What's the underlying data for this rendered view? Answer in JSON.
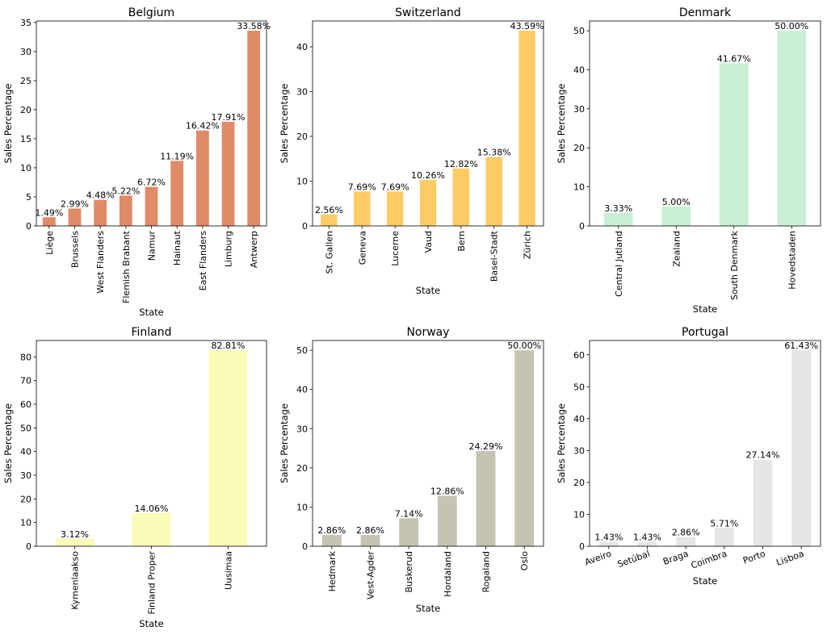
{
  "chart_data": [
    {
      "type": "bar",
      "title": "Belgium",
      "xlabel": "State",
      "ylabel": "Sales Percentage",
      "color": "#e08b68",
      "categories": [
        "Liège",
        "Brussels",
        "West Flanders",
        "Flemish Brabant",
        "Namur",
        "Hainaut",
        "East Flanders",
        "Limburg",
        "Antwerp"
      ],
      "values": [
        1.49,
        2.99,
        4.48,
        5.22,
        6.72,
        11.19,
        16.42,
        17.91,
        33.58
      ],
      "labels": [
        "1.49%",
        "2.99%",
        "4.48%",
        "5.22%",
        "6.72%",
        "11.19%",
        "16.42%",
        "17.91%",
        "33.58%"
      ],
      "ylim": [
        0,
        35.26
      ],
      "yticks": [
        0,
        5,
        10,
        15,
        20,
        25,
        30,
        35
      ],
      "xtick_rotation": 90
    },
    {
      "type": "bar",
      "title": "Switzerland",
      "xlabel": "State",
      "ylabel": "Sales Percentage",
      "color": "#fdcb64",
      "categories": [
        "St. Gallen",
        "Geneva",
        "Lucerne",
        "Vaud",
        "Bern",
        "Basel-Stadt",
        "Zürich"
      ],
      "values": [
        2.56,
        7.69,
        7.69,
        10.26,
        12.82,
        15.38,
        43.59
      ],
      "labels": [
        "2.56%",
        "7.69%",
        "7.69%",
        "10.26%",
        "12.82%",
        "15.38%",
        "43.59%"
      ],
      "ylim": [
        0,
        45.77
      ],
      "yticks": [
        0,
        10,
        20,
        30,
        40
      ],
      "xtick_rotation": 90
    },
    {
      "type": "bar",
      "title": "Denmark",
      "xlabel": "State",
      "ylabel": "Sales Percentage",
      "color": "#c9efd5",
      "categories": [
        "Central Jutland",
        "Zealand",
        "South Denmark",
        "Hovedstaden"
      ],
      "values": [
        3.33,
        5.0,
        41.67,
        50.0
      ],
      "labels": [
        "3.33%",
        "5.00%",
        "41.67%",
        "50.00%"
      ],
      "ylim": [
        0,
        52.5
      ],
      "yticks": [
        0,
        10,
        20,
        30,
        40,
        50
      ],
      "xtick_rotation": 90
    },
    {
      "type": "bar",
      "title": "Finland",
      "xlabel": "State",
      "ylabel": "Sales Percentage",
      "color": "#fafbb7",
      "categories": [
        "Kymenlaakso",
        "Finland Proper",
        "Uusimaa"
      ],
      "values": [
        3.12,
        14.06,
        82.81
      ],
      "labels": [
        "3.12%",
        "14.06%",
        "82.81%"
      ],
      "ylim": [
        0,
        86.95
      ],
      "yticks": [
        0,
        10,
        20,
        30,
        40,
        50,
        60,
        70,
        80
      ],
      "xtick_rotation": 90
    },
    {
      "type": "bar",
      "title": "Norway",
      "xlabel": "State",
      "ylabel": "Sales Percentage",
      "color": "#c5c3b1",
      "categories": [
        "Hedmark",
        "Vest-Agder",
        "Buskerud",
        "Hordaland",
        "Rogaland",
        "Oslo"
      ],
      "values": [
        2.86,
        2.86,
        7.14,
        12.86,
        24.29,
        50.0
      ],
      "labels": [
        "2.86%",
        "2.86%",
        "7.14%",
        "12.86%",
        "24.29%",
        "50.00%"
      ],
      "ylim": [
        0,
        52.5
      ],
      "yticks": [
        0,
        10,
        20,
        30,
        40,
        50
      ],
      "xtick_rotation": 90
    },
    {
      "type": "bar",
      "title": "Portugal",
      "xlabel": "State",
      "ylabel": "Sales Percentage",
      "color": "#e5e5e5",
      "categories": [
        "Aveiro",
        "Setúbal",
        "Braga",
        "Coimbra",
        "Porto",
        "Lisboa"
      ],
      "values": [
        1.43,
        1.43,
        2.86,
        5.71,
        27.14,
        61.43
      ],
      "labels": [
        "1.43%",
        "1.43%",
        "2.86%",
        "5.71%",
        "27.14%",
        "61.43%"
      ],
      "ylim": [
        0,
        64.5
      ],
      "yticks": [
        0,
        10,
        20,
        30,
        40,
        50,
        60
      ],
      "xtick_rotation": 20
    }
  ]
}
